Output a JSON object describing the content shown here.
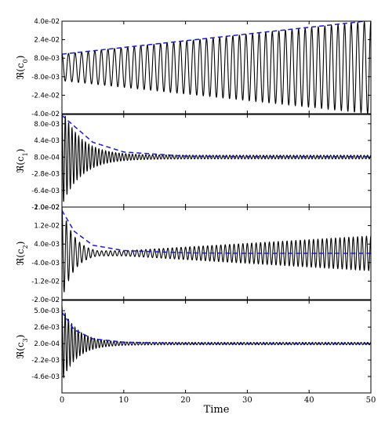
{
  "chart_data": [
    {
      "type": "line",
      "ylabel": "ℜ(c₀)",
      "ylabel_main": "ℜ(c",
      "ylabel_sub": "0",
      "ylabel_close": ")",
      "ylim": [
        -0.04,
        0.04
      ],
      "yticks": [
        0.04,
        0.024,
        0.008,
        -0.008,
        -0.024,
        -0.04
      ],
      "ytick_labels": [
        "4.0e-02",
        "2.4e-02",
        "8.0e-03",
        "-8.0e-03",
        "-2.4e-02",
        "-4.0e-02"
      ],
      "xlim": [
        0,
        50
      ],
      "series": [
        {
          "style": "black-solid",
          "kind": "oscillation",
          "center": 0.0,
          "amp_start": 0.0115,
          "amp_end": 0.04,
          "growth": "linear",
          "cycles": 47
        },
        {
          "style": "blue-dashed",
          "kind": "envelope",
          "x": [
            0,
            50
          ],
          "y": [
            0.0115,
            0.0405
          ]
        }
      ]
    },
    {
      "type": "line",
      "ylabel": "ℜ(c₁)",
      "ylabel_main": "ℜ(c",
      "ylabel_sub": "1",
      "ylabel_close": ")",
      "ylim": [
        -0.01,
        0.01
      ],
      "yticks": [
        0.008,
        0.0044,
        0.0008,
        -0.0028,
        -0.0064,
        -0.01
      ],
      "ytick_labels": [
        "8.0e-03",
        "4.4e-03",
        "8.0e-04",
        "-2.8e-03",
        "-6.4e-03",
        "-1.0e-02"
      ],
      "xlim": [
        0,
        50
      ],
      "series": [
        {
          "style": "black-solid",
          "kind": "oscillation",
          "center": 0.0008,
          "amp_start": 0.0105,
          "decay_rate": 0.33,
          "amp_floor": 0.0004,
          "cycles": 92
        },
        {
          "style": "blue-dashed",
          "kind": "envelope",
          "x": [
            0,
            5,
            10,
            20,
            30,
            40,
            50
          ],
          "y": [
            0.0098,
            0.004,
            0.0019,
            0.001,
            0.0009,
            0.0009,
            0.0009
          ]
        }
      ]
    },
    {
      "type": "line",
      "ylabel": "ℜ(c₂)",
      "ylabel_main": "ℜ(c",
      "ylabel_sub": "2",
      "ylabel_close": ")",
      "ylim": [
        -0.02,
        0.02
      ],
      "yticks": [
        0.02,
        0.012,
        0.004,
        -0.004,
        -0.012,
        -0.02
      ],
      "ytick_labels": [
        "2.0e-02",
        "1.2e-02",
        "4.0e-03",
        "-4.0e-03",
        "-1.2e-02",
        "-2.0e-02"
      ],
      "xlim": [
        0,
        50
      ],
      "series": [
        {
          "style": "black-solid",
          "kind": "oscillation",
          "center": 0.0,
          "amp_start": 0.02,
          "decay_rate": 0.5,
          "amp_mid": 0.0011,
          "amp_end": 0.0075,
          "cycles": 70
        },
        {
          "style": "blue-dashed",
          "kind": "envelope",
          "x": [
            0,
            2,
            5,
            10,
            20,
            30,
            40,
            50
          ],
          "y": [
            0.0185,
            0.0095,
            0.0035,
            0.0012,
            0.0002,
            0.0,
            0.0,
            0.0
          ]
        }
      ]
    },
    {
      "type": "line",
      "ylabel": "ℜ(c₃)",
      "ylabel_main": "ℜ(c",
      "ylabel_sub": "3",
      "ylabel_close": ")",
      "ylim": [
        -0.007,
        0.0065
      ],
      "yticks": [
        0.005,
        0.0026,
        0.0002,
        -0.0022,
        -0.0046
      ],
      "ytick_labels": [
        "5.0e-03",
        "2.6e-03",
        "2.0e-04",
        "-2.2e-03",
        "-4.6e-03"
      ],
      "xlim": [
        0,
        50
      ],
      "xlabel": "Time",
      "xticks": [
        0,
        10,
        20,
        30,
        40,
        50
      ],
      "xtick_labels": [
        "0",
        "10",
        "20",
        "30",
        "40",
        "50"
      ],
      "series": [
        {
          "style": "black-solid",
          "kind": "oscillation",
          "center": 0.0002,
          "amp_start": 0.0055,
          "decay_rate": 0.42,
          "amp_floor": 0.00018,
          "cycles": 95
        },
        {
          "style": "blue-dashed",
          "kind": "envelope",
          "x": [
            0,
            2,
            5,
            10,
            20,
            50
          ],
          "y": [
            0.0048,
            0.0022,
            0.0009,
            0.0004,
            0.0002,
            0.0002
          ]
        }
      ]
    }
  ]
}
